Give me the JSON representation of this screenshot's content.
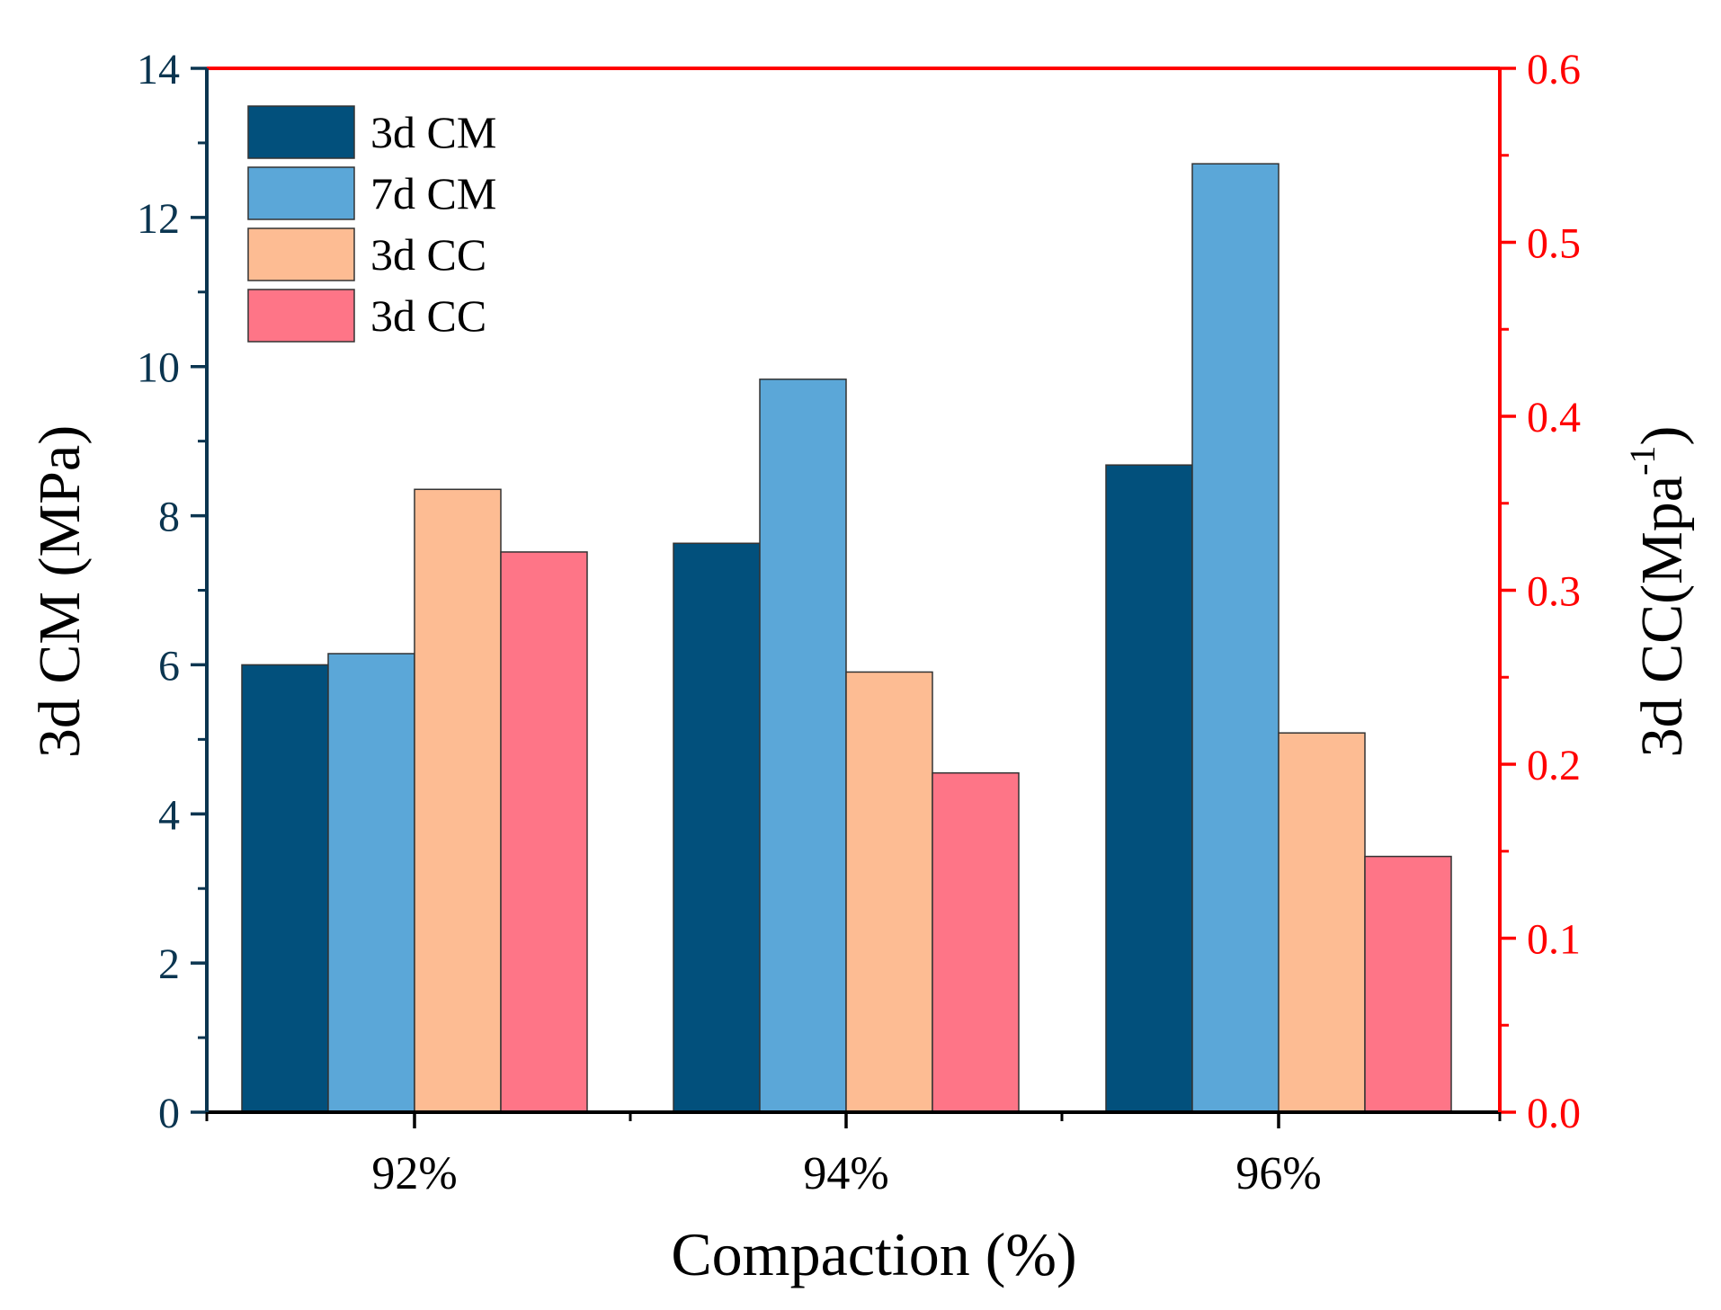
{
  "chart_data": {
    "type": "bar",
    "xlabel": "Compaction (%)",
    "ylabel": "3d CM (MPa)",
    "y2label_main": "3d CC(Mpa",
    "y2label_sup": "-1",
    "y2label_close": ")",
    "categories": [
      "92%",
      "94%",
      "96%"
    ],
    "ylim": [
      0,
      14
    ],
    "yticks": [
      "0",
      "2",
      "4",
      "6",
      "8",
      "10",
      "12",
      "14"
    ],
    "y2lim": [
      0.0,
      0.6
    ],
    "y2ticks": [
      "0.0",
      "0.1",
      "0.2",
      "0.3",
      "0.4",
      "0.5",
      "0.6"
    ],
    "grid": false,
    "legend_position": "top-left",
    "series": [
      {
        "name": "3d CM",
        "axis": "left",
        "color": "#02507c",
        "values": [
          6.0,
          7.63,
          8.68
        ]
      },
      {
        "name": "7d CM",
        "axis": "left",
        "color": "#5ba7d8",
        "values": [
          6.15,
          9.83,
          12.72
        ]
      },
      {
        "name": "3d CC",
        "axis": "right",
        "color": "#fdbc93",
        "values": [
          0.358,
          0.253,
          0.218
        ]
      },
      {
        "name": "3d CC",
        "axis": "right",
        "color": "#fe7587",
        "values": [
          0.322,
          0.195,
          0.147
        ]
      }
    ],
    "colors": {
      "left_axis": "#0b3550",
      "right_axis": "#ff0000",
      "frame": "#000000",
      "bar_outline": "#333333"
    }
  }
}
